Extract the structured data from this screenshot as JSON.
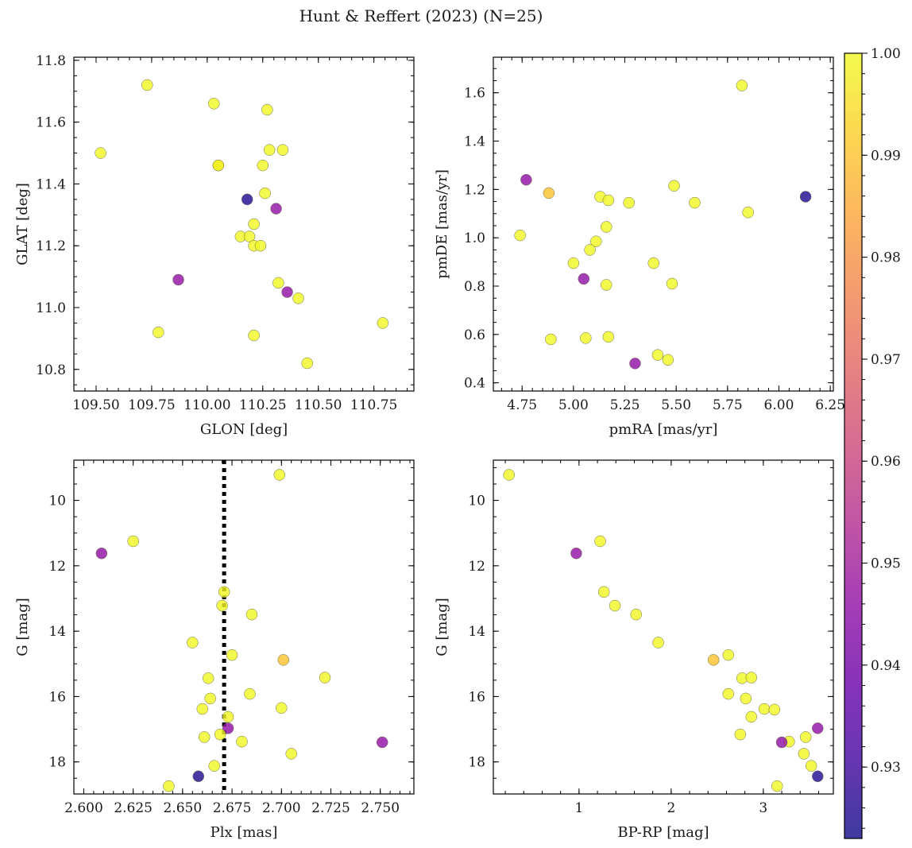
{
  "figure": {
    "title": "Hunt & Reffert (2023) (N=25)"
  },
  "colorbar": {
    "colormap": "plasma",
    "range": [
      0.923,
      1.0
    ],
    "ticks": [
      0.93,
      0.94,
      0.95,
      0.96,
      0.97,
      0.98,
      0.99,
      1.0
    ],
    "tick_labels": [
      "0.93",
      "0.94",
      "0.95",
      "0.96",
      "0.97",
      "0.98",
      "0.99",
      "1.00"
    ]
  },
  "chart_data": [
    {
      "id": "glon-glat",
      "type": "scatter",
      "title": "",
      "xlabel": "GLON [deg]",
      "ylabel": "GLAT [deg]",
      "xlim": [
        109.4,
        110.93
      ],
      "ylim": [
        10.73,
        11.81
      ],
      "y_inverted": false,
      "xticks": [
        109.5,
        109.75,
        110.0,
        110.25,
        110.5,
        110.75
      ],
      "xtick_labels": [
        "109.50",
        "109.75",
        "110.00",
        "110.25",
        "110.50",
        "110.75"
      ],
      "yticks": [
        10.8,
        11.0,
        11.2,
        11.4,
        11.6,
        11.8
      ],
      "ytick_labels": [
        "10.8",
        "11.0",
        "11.2",
        "11.4",
        "11.6",
        "11.8"
      ],
      "points": [
        {
          "x": 109.52,
          "y": 11.5,
          "c": 1.0
        },
        {
          "x": 109.73,
          "y": 11.72,
          "c": 1.0
        },
        {
          "x": 110.03,
          "y": 11.66,
          "c": 1.0
        },
        {
          "x": 110.27,
          "y": 11.64,
          "c": 1.0
        },
        {
          "x": 110.28,
          "y": 11.51,
          "c": 1.0
        },
        {
          "x": 110.34,
          "y": 11.51,
          "c": 1.0
        },
        {
          "x": 110.05,
          "y": 11.46,
          "c": 1.0
        },
        {
          "x": 110.05,
          "y": 11.46,
          "c": 0.998
        },
        {
          "x": 110.25,
          "y": 11.46,
          "c": 1.0
        },
        {
          "x": 110.26,
          "y": 11.37,
          "c": 1.0
        },
        {
          "x": 110.18,
          "y": 11.35,
          "c": 0.925
        },
        {
          "x": 110.31,
          "y": 11.32,
          "c": 0.946
        },
        {
          "x": 110.21,
          "y": 11.27,
          "c": 1.0
        },
        {
          "x": 110.15,
          "y": 11.23,
          "c": 1.0
        },
        {
          "x": 110.19,
          "y": 11.23,
          "c": 1.0
        },
        {
          "x": 110.21,
          "y": 11.2,
          "c": 1.0
        },
        {
          "x": 110.24,
          "y": 11.2,
          "c": 1.0
        },
        {
          "x": 109.87,
          "y": 11.09,
          "c": 0.946
        },
        {
          "x": 110.32,
          "y": 11.08,
          "c": 1.0
        },
        {
          "x": 110.36,
          "y": 11.05,
          "c": 0.946
        },
        {
          "x": 110.41,
          "y": 11.03,
          "c": 1.0
        },
        {
          "x": 110.79,
          "y": 10.95,
          "c": 1.0
        },
        {
          "x": 109.78,
          "y": 10.92,
          "c": 1.0
        },
        {
          "x": 110.21,
          "y": 10.91,
          "c": 1.0
        },
        {
          "x": 110.45,
          "y": 10.82,
          "c": 1.0
        }
      ]
    },
    {
      "id": "pmra-pmde",
      "type": "scatter",
      "title": "",
      "xlabel": "pmRA [mas/yr]",
      "ylabel": "pmDE [mas/yr]",
      "xlim": [
        4.61,
        6.265
      ],
      "ylim": [
        0.366,
        1.747
      ],
      "y_inverted": false,
      "xticks": [
        4.75,
        5.0,
        5.25,
        5.5,
        5.75,
        6.0,
        6.25
      ],
      "xtick_labels": [
        "4.75",
        "5.00",
        "5.25",
        "5.50",
        "5.75",
        "6.00",
        "6.25"
      ],
      "yticks": [
        0.4,
        0.6,
        0.8,
        1.0,
        1.2,
        1.4,
        1.6
      ],
      "ytick_labels": [
        "0.4",
        "0.6",
        "0.8",
        "1.0",
        "1.2",
        "1.4",
        "1.6"
      ],
      "points": [
        {
          "x": 5.82,
          "y": 1.63,
          "c": 1.0
        },
        {
          "x": 4.77,
          "y": 1.24,
          "c": 0.946
        },
        {
          "x": 4.88,
          "y": 1.185,
          "c": 0.99
        },
        {
          "x": 5.49,
          "y": 1.215,
          "c": 1.0
        },
        {
          "x": 5.13,
          "y": 1.17,
          "c": 1.0
        },
        {
          "x": 5.17,
          "y": 1.155,
          "c": 1.0
        },
        {
          "x": 5.27,
          "y": 1.145,
          "c": 1.0
        },
        {
          "x": 5.59,
          "y": 1.145,
          "c": 1.0
        },
        {
          "x": 6.13,
          "y": 1.17,
          "c": 0.925
        },
        {
          "x": 5.85,
          "y": 1.105,
          "c": 1.0
        },
        {
          "x": 5.16,
          "y": 1.045,
          "c": 1.0
        },
        {
          "x": 4.74,
          "y": 1.01,
          "c": 1.0
        },
        {
          "x": 5.11,
          "y": 0.985,
          "c": 1.0
        },
        {
          "x": 5.08,
          "y": 0.95,
          "c": 1.0
        },
        {
          "x": 5.0,
          "y": 0.895,
          "c": 1.0
        },
        {
          "x": 5.39,
          "y": 0.895,
          "c": 1.0
        },
        {
          "x": 5.05,
          "y": 0.83,
          "c": 0.946
        },
        {
          "x": 5.16,
          "y": 0.805,
          "c": 1.0
        },
        {
          "x": 5.48,
          "y": 0.81,
          "c": 1.0
        },
        {
          "x": 4.89,
          "y": 0.58,
          "c": 1.0
        },
        {
          "x": 5.06,
          "y": 0.585,
          "c": 1.0
        },
        {
          "x": 5.17,
          "y": 0.59,
          "c": 1.0
        },
        {
          "x": 5.41,
          "y": 0.515,
          "c": 1.0
        },
        {
          "x": 5.46,
          "y": 0.495,
          "c": 1.0
        },
        {
          "x": 5.3,
          "y": 0.48,
          "c": 0.946
        }
      ]
    },
    {
      "id": "plx-g",
      "type": "scatter",
      "title": "",
      "xlabel": "Plx [mas]",
      "ylabel": "G [mag]",
      "xlim": [
        2.595,
        2.767
      ],
      "ylim": [
        18.98,
        8.77
      ],
      "y_inverted": true,
      "vline": {
        "x": 2.671,
        "style": "dotted"
      },
      "xticks": [
        2.6,
        2.625,
        2.65,
        2.675,
        2.7,
        2.725,
        2.75
      ],
      "xtick_labels": [
        "2.600",
        "2.625",
        "2.650",
        "2.675",
        "2.700",
        "2.725",
        "2.750"
      ],
      "yticks": [
        10,
        12,
        14,
        16,
        18
      ],
      "ytick_labels": [
        "10",
        "12",
        "14",
        "16",
        "18"
      ],
      "points": [
        {
          "x": 2.699,
          "y": 9.22,
          "c": 1.0
        },
        {
          "x": 2.625,
          "y": 11.25,
          "c": 1.0
        },
        {
          "x": 2.609,
          "y": 11.62,
          "c": 0.946
        },
        {
          "x": 2.671,
          "y": 12.8,
          "c": 1.0
        },
        {
          "x": 2.67,
          "y": 13.22,
          "c": 1.0
        },
        {
          "x": 2.685,
          "y": 13.49,
          "c": 1.0
        },
        {
          "x": 2.655,
          "y": 14.35,
          "c": 1.0
        },
        {
          "x": 2.675,
          "y": 14.73,
          "c": 1.0
        },
        {
          "x": 2.701,
          "y": 14.88,
          "c": 0.99
        },
        {
          "x": 2.663,
          "y": 15.44,
          "c": 1.0
        },
        {
          "x": 2.722,
          "y": 15.42,
          "c": 1.0
        },
        {
          "x": 2.684,
          "y": 15.92,
          "c": 1.0
        },
        {
          "x": 2.664,
          "y": 16.06,
          "c": 1.0
        },
        {
          "x": 2.66,
          "y": 16.38,
          "c": 1.0
        },
        {
          "x": 2.7,
          "y": 16.35,
          "c": 1.0
        },
        {
          "x": 2.673,
          "y": 16.62,
          "c": 1.0
        },
        {
          "x": 2.673,
          "y": 16.97,
          "c": 0.946
        },
        {
          "x": 2.669,
          "y": 17.16,
          "c": 1.0
        },
        {
          "x": 2.661,
          "y": 17.24,
          "c": 1.0
        },
        {
          "x": 2.68,
          "y": 17.38,
          "c": 1.0
        },
        {
          "x": 2.751,
          "y": 17.4,
          "c": 0.946
        },
        {
          "x": 2.705,
          "y": 17.75,
          "c": 1.0
        },
        {
          "x": 2.666,
          "y": 18.12,
          "c": 1.0
        },
        {
          "x": 2.658,
          "y": 18.44,
          "c": 0.925
        },
        {
          "x": 2.643,
          "y": 18.74,
          "c": 1.0
        }
      ]
    },
    {
      "id": "bprp-g",
      "type": "scatter",
      "title": "",
      "xlabel": "BP-RP [mag]",
      "ylabel": "G [mag]",
      "xlim": [
        0.07,
        3.76
      ],
      "ylim": [
        18.98,
        8.77
      ],
      "y_inverted": true,
      "xticks": [
        1,
        2,
        3
      ],
      "xtick_labels": [
        "1",
        "2",
        "3"
      ],
      "yticks": [
        10,
        12,
        14,
        16,
        18
      ],
      "ytick_labels": [
        "10",
        "12",
        "14",
        "16",
        "18"
      ],
      "points": [
        {
          "x": 0.24,
          "y": 9.22,
          "c": 1.0
        },
        {
          "x": 1.23,
          "y": 11.25,
          "c": 1.0
        },
        {
          "x": 0.97,
          "y": 11.62,
          "c": 0.946
        },
        {
          "x": 1.27,
          "y": 12.8,
          "c": 1.0
        },
        {
          "x": 1.39,
          "y": 13.22,
          "c": 1.0
        },
        {
          "x": 1.62,
          "y": 13.49,
          "c": 1.0
        },
        {
          "x": 1.86,
          "y": 14.35,
          "c": 1.0
        },
        {
          "x": 2.62,
          "y": 14.73,
          "c": 1.0
        },
        {
          "x": 2.46,
          "y": 14.88,
          "c": 0.99
        },
        {
          "x": 2.77,
          "y": 15.44,
          "c": 1.0
        },
        {
          "x": 2.87,
          "y": 15.42,
          "c": 1.0
        },
        {
          "x": 2.62,
          "y": 15.92,
          "c": 1.0
        },
        {
          "x": 2.81,
          "y": 16.06,
          "c": 1.0
        },
        {
          "x": 3.01,
          "y": 16.38,
          "c": 1.0
        },
        {
          "x": 3.12,
          "y": 16.4,
          "c": 1.0
        },
        {
          "x": 2.87,
          "y": 16.62,
          "c": 1.0
        },
        {
          "x": 3.59,
          "y": 16.97,
          "c": 0.946
        },
        {
          "x": 2.75,
          "y": 17.16,
          "c": 1.0
        },
        {
          "x": 3.46,
          "y": 17.24,
          "c": 1.0
        },
        {
          "x": 3.28,
          "y": 17.38,
          "c": 1.0
        },
        {
          "x": 3.2,
          "y": 17.4,
          "c": 0.946
        },
        {
          "x": 3.44,
          "y": 17.75,
          "c": 1.0
        },
        {
          "x": 3.52,
          "y": 18.12,
          "c": 1.0
        },
        {
          "x": 3.59,
          "y": 18.44,
          "c": 0.925
        },
        {
          "x": 3.15,
          "y": 18.74,
          "c": 1.0
        }
      ]
    }
  ]
}
